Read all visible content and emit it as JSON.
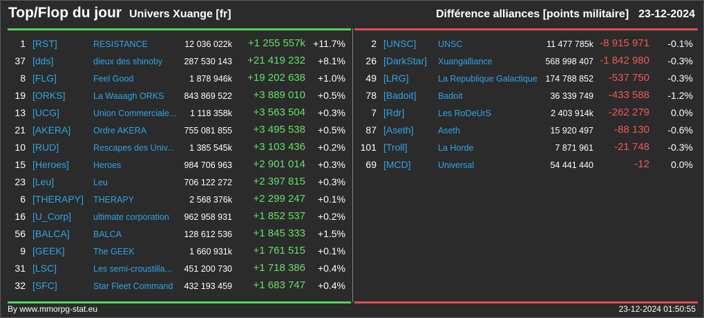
{
  "header": {
    "title": "Top/Flop du jour",
    "subtitle": "Univers Xuange [fr]",
    "right_title": "Différence alliances [points militaire]",
    "date": "23-12-2024"
  },
  "colors": {
    "positive": "#63e267",
    "negative": "#f05a55",
    "tag": "#2ea6e8",
    "background": "#2b2b2b"
  },
  "top": [
    {
      "rank": "1",
      "tag": "[RST]",
      "name": "RESISTANCE",
      "points": "12 036 022k",
      "diff": "+1 255 557k",
      "pct": "+11.7%"
    },
    {
      "rank": "37",
      "tag": "[dds]",
      "name": "dieux des shinoby",
      "points": "287 530 143",
      "diff": "+21 419 232",
      "pct": "+8.1%"
    },
    {
      "rank": "8",
      "tag": "[FLG]",
      "name": "Feel Good",
      "points": "1 878 946k",
      "diff": "+19 202 638",
      "pct": "+1.0%"
    },
    {
      "rank": "19",
      "tag": "[ORKS]",
      "name": "La Waaagh ORKS",
      "points": "843 869 522",
      "diff": "+3 889 010",
      "pct": "+0.5%"
    },
    {
      "rank": "13",
      "tag": "[UCG]",
      "name": "Union Commerciale...",
      "points": "1 118 358k",
      "diff": "+3 563 504",
      "pct": "+0.3%"
    },
    {
      "rank": "21",
      "tag": "[AKERA]",
      "name": "Ordre AKERA",
      "points": "755 081 855",
      "diff": "+3 495 538",
      "pct": "+0.5%"
    },
    {
      "rank": "10",
      "tag": "[RUD]",
      "name": "Rescapes des Univ...",
      "points": "1 385 545k",
      "diff": "+3 103 436",
      "pct": "+0.2%"
    },
    {
      "rank": "15",
      "tag": "[Heroes]",
      "name": "Heroes",
      "points": "984 706 963",
      "diff": "+2 901 014",
      "pct": "+0.3%"
    },
    {
      "rank": "23",
      "tag": "[Leu]",
      "name": "Leu",
      "points": "706 122 272",
      "diff": "+2 397 815",
      "pct": "+0.3%"
    },
    {
      "rank": "6",
      "tag": "[THERAPY]",
      "name": "THERAPY",
      "points": "2 568 376k",
      "diff": "+2 299 247",
      "pct": "+0.1%"
    },
    {
      "rank": "16",
      "tag": "[U_Corp]",
      "name": "ultimate corporation",
      "points": "962 958 931",
      "diff": "+1 852 537",
      "pct": "+0.2%"
    },
    {
      "rank": "56",
      "tag": "[BALCA]",
      "name": "BALCA",
      "points": "128 612 536",
      "diff": "+1 845 333",
      "pct": "+1.5%"
    },
    {
      "rank": "9",
      "tag": "[GEEK]",
      "name": "The GEEK",
      "points": "1 660 931k",
      "diff": "+1 761 515",
      "pct": "+0.1%"
    },
    {
      "rank": "31",
      "tag": "[LSC]",
      "name": "Les semi-croustilla...",
      "points": "451 200 730",
      "diff": "+1 718 386",
      "pct": "+0.4%"
    },
    {
      "rank": "32",
      "tag": "[SFC]",
      "name": "Star Fleet Command",
      "points": "432 193 459",
      "diff": "+1 683 747",
      "pct": "+0.4%"
    }
  ],
  "flop": [
    {
      "rank": "2",
      "tag": "[UNSC]",
      "name": "UNSC",
      "points": "11 477 785k",
      "diff": "-8 915 971",
      "pct": "-0.1%"
    },
    {
      "rank": "26",
      "tag": "[DarkStar]",
      "name": "Xuangalliance",
      "points": "568 998 407",
      "diff": "-1 842 980",
      "pct": "-0.3%"
    },
    {
      "rank": "49",
      "tag": "[LRG]",
      "name": "La Republique Galactique",
      "points": "174 788 852",
      "diff": "-537 750",
      "pct": "-0.3%"
    },
    {
      "rank": "78",
      "tag": "[Badoit]",
      "name": "Badoit",
      "points": "36 339 749",
      "diff": "-433 588",
      "pct": "-1.2%"
    },
    {
      "rank": "7",
      "tag": "[Rdr]",
      "name": "Les RoDeUrS",
      "points": "2 403 914k",
      "diff": "-262 279",
      "pct": "0.0%"
    },
    {
      "rank": "87",
      "tag": "[Aseth]",
      "name": "Aseth",
      "points": "15 920 497",
      "diff": "-88 130",
      "pct": "-0.6%"
    },
    {
      "rank": "101",
      "tag": "[Troll]",
      "name": "La Horde",
      "points": "7 871 961",
      "diff": "-21 748",
      "pct": "-0.3%"
    },
    {
      "rank": "69",
      "tag": "[MCD]",
      "name": "Universal",
      "points": "54 441 440",
      "diff": "-12",
      "pct": "0.0%"
    }
  ],
  "footer": {
    "source": "By www.mmorpg-stat.eu",
    "timestamp": "23-12-2024 01:50:55"
  }
}
